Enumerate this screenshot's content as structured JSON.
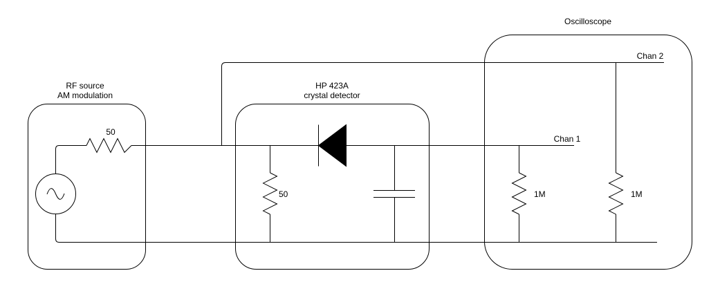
{
  "boxes": {
    "rf_source": {
      "title_line1": "RF source",
      "title_line2": "AM modulation"
    },
    "detector": {
      "title_line1": "HP 423A",
      "title_line2": "crystal detector"
    },
    "oscilloscope": {
      "title": "Oscilloscope"
    }
  },
  "components": {
    "source_resistor": "50",
    "detector_resistor": "50",
    "chan1_resistor": "1M",
    "chan2_resistor": "1M"
  },
  "channels": {
    "chan1": "Chan 1",
    "chan2": "Chan 2"
  }
}
